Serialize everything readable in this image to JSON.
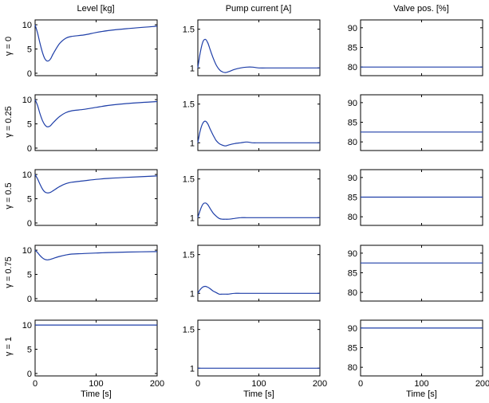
{
  "colors": {
    "line": "#1f3fa8",
    "frame": "#000000",
    "background": "#ffffff"
  },
  "chart_data": {
    "type": "line",
    "layout": "grid 5 rows x 3 columns",
    "column_titles": [
      "Level [kg]",
      "Pump current [A]",
      "Valve pos. [%]"
    ],
    "row_labels": [
      "γ = 0",
      "γ = 0.25",
      "γ = 0.5",
      "γ = 0.75",
      "γ = 1"
    ],
    "xlabel": "Time [s]",
    "xlim": [
      0,
      200
    ],
    "x_ticks": [
      "0",
      "100",
      "200"
    ],
    "columns": [
      {
        "title": "Level [kg]",
        "ylim": [
          -0.5,
          11
        ],
        "y_ticks": [
          "0",
          "5",
          "10"
        ]
      },
      {
        "title": "Pump current [A]",
        "ylim": [
          0.9,
          1.62
        ],
        "y_ticks": [
          "1",
          "1.5"
        ]
      },
      {
        "title": "Valve pos. [%]",
        "ylim": [
          77.8,
          92
        ],
        "y_ticks": [
          "80",
          "85",
          "90"
        ]
      }
    ],
    "series": [
      {
        "row": 0,
        "col": 0,
        "x": [
          0,
          4,
          8,
          12,
          16,
          20,
          25,
          30,
          40,
          50,
          60,
          80,
          100,
          120,
          150,
          200
        ],
        "y": [
          10,
          8.3,
          6.2,
          4.3,
          3.0,
          2.5,
          2.9,
          4.1,
          6.1,
          7.2,
          7.6,
          7.9,
          8.4,
          8.8,
          9.2,
          9.7
        ]
      },
      {
        "row": 0,
        "col": 1,
        "x": [
          0,
          4,
          8,
          12,
          16,
          20,
          25,
          30,
          35,
          40,
          45,
          50,
          60,
          70,
          80,
          90,
          100,
          120,
          150,
          200
        ],
        "y": [
          1.0,
          1.2,
          1.33,
          1.37,
          1.33,
          1.24,
          1.13,
          1.04,
          0.98,
          0.95,
          0.94,
          0.95,
          0.98,
          1.0,
          1.01,
          1.01,
          1.0,
          1.0,
          1.0,
          1.0
        ]
      },
      {
        "row": 0,
        "col": 2,
        "x": [
          0,
          200
        ],
        "y": [
          80,
          80
        ]
      },
      {
        "row": 1,
        "col": 0,
        "x": [
          0,
          4,
          8,
          12,
          16,
          20,
          25,
          30,
          40,
          50,
          60,
          80,
          100,
          120,
          150,
          200
        ],
        "y": [
          10,
          8.8,
          7.1,
          5.7,
          4.8,
          4.4,
          4.6,
          5.3,
          6.5,
          7.3,
          7.7,
          8.0,
          8.4,
          8.8,
          9.2,
          9.6
        ]
      },
      {
        "row": 1,
        "col": 1,
        "x": [
          0,
          4,
          8,
          12,
          16,
          20,
          25,
          30,
          35,
          40,
          45,
          50,
          60,
          70,
          80,
          90,
          100,
          120,
          150,
          200
        ],
        "y": [
          1.0,
          1.16,
          1.25,
          1.28,
          1.25,
          1.18,
          1.1,
          1.03,
          0.99,
          0.97,
          0.96,
          0.97,
          0.99,
          1.0,
          1.01,
          1.0,
          1.0,
          1.0,
          1.0,
          1.0
        ]
      },
      {
        "row": 1,
        "col": 2,
        "x": [
          0,
          200
        ],
        "y": [
          82.5,
          82.5
        ]
      },
      {
        "row": 2,
        "col": 0,
        "x": [
          0,
          4,
          8,
          12,
          16,
          20,
          25,
          30,
          40,
          50,
          60,
          80,
          100,
          120,
          150,
          200
        ],
        "y": [
          10,
          9.1,
          8.0,
          7.0,
          6.4,
          6.2,
          6.3,
          6.7,
          7.5,
          8.1,
          8.4,
          8.7,
          9.0,
          9.2,
          9.4,
          9.7
        ]
      },
      {
        "row": 2,
        "col": 1,
        "x": [
          0,
          4,
          8,
          12,
          16,
          20,
          25,
          30,
          35,
          40,
          45,
          50,
          60,
          70,
          80,
          90,
          100,
          120,
          150,
          200
        ],
        "y": [
          1.0,
          1.1,
          1.17,
          1.19,
          1.17,
          1.12,
          1.06,
          1.02,
          0.99,
          0.98,
          0.98,
          0.98,
          0.99,
          1.0,
          1.0,
          1.0,
          1.0,
          1.0,
          1.0,
          1.0
        ]
      },
      {
        "row": 2,
        "col": 2,
        "x": [
          0,
          200
        ],
        "y": [
          85,
          85
        ]
      },
      {
        "row": 3,
        "col": 0,
        "x": [
          0,
          4,
          8,
          12,
          16,
          20,
          25,
          30,
          40,
          50,
          60,
          80,
          100,
          120,
          150,
          200
        ],
        "y": [
          10,
          9.5,
          8.9,
          8.4,
          8.1,
          8.0,
          8.1,
          8.3,
          8.7,
          9.0,
          9.2,
          9.3,
          9.4,
          9.5,
          9.6,
          9.7
        ]
      },
      {
        "row": 3,
        "col": 1,
        "x": [
          0,
          4,
          8,
          12,
          16,
          20,
          25,
          30,
          35,
          40,
          45,
          50,
          60,
          70,
          80,
          90,
          100,
          120,
          150,
          200
        ],
        "y": [
          1.0,
          1.05,
          1.08,
          1.09,
          1.08,
          1.06,
          1.03,
          1.01,
          0.99,
          0.99,
          0.99,
          0.99,
          1.0,
          1.0,
          1.0,
          1.0,
          1.0,
          1.0,
          1.0,
          1.0
        ]
      },
      {
        "row": 3,
        "col": 2,
        "x": [
          0,
          200
        ],
        "y": [
          87.5,
          87.5
        ]
      },
      {
        "row": 4,
        "col": 0,
        "x": [
          0,
          200
        ],
        "y": [
          10,
          10
        ]
      },
      {
        "row": 4,
        "col": 1,
        "x": [
          0,
          200
        ],
        "y": [
          1.0,
          1.0
        ]
      },
      {
        "row": 4,
        "col": 2,
        "x": [
          0,
          200
        ],
        "y": [
          90,
          90
        ]
      }
    ]
  }
}
